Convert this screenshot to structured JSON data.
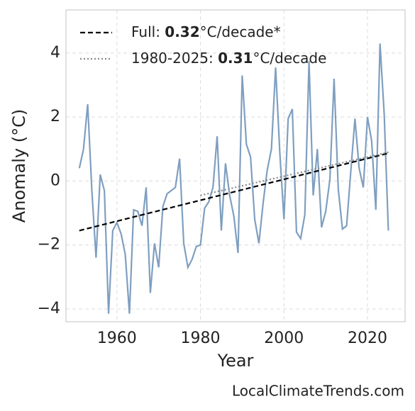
{
  "chart_data": {
    "type": "line",
    "x_label": "Year",
    "y_label": "Anomaly (°C)",
    "x": [
      1951,
      1952,
      1953,
      1954,
      1955,
      1956,
      1957,
      1958,
      1959,
      1960,
      1961,
      1962,
      1963,
      1964,
      1965,
      1966,
      1967,
      1968,
      1969,
      1970,
      1971,
      1972,
      1973,
      1974,
      1975,
      1976,
      1977,
      1978,
      1979,
      1980,
      1981,
      1982,
      1983,
      1984,
      1985,
      1986,
      1987,
      1988,
      1989,
      1990,
      1991,
      1992,
      1993,
      1994,
      1995,
      1996,
      1997,
      1998,
      1999,
      2000,
      2001,
      2002,
      2003,
      2004,
      2005,
      2006,
      2007,
      2008,
      2009,
      2010,
      2011,
      2012,
      2013,
      2014,
      2015,
      2016,
      2017,
      2018,
      2019,
      2020,
      2021,
      2022,
      2023,
      2024,
      2025
    ],
    "series": [
      {
        "color": "#7f9fc0",
        "values": [
          0.4,
          1.0,
          2.4,
          -0.3,
          -2.4,
          0.2,
          -0.3,
          -4.15,
          -1.55,
          -1.3,
          -1.65,
          -2.3,
          -4.15,
          -0.9,
          -0.95,
          -1.4,
          -0.2,
          -3.5,
          -1.95,
          -2.7,
          -0.8,
          -0.4,
          -0.3,
          -0.2,
          0.7,
          -1.95,
          -2.7,
          -2.45,
          -2.05,
          -2.0,
          -0.85,
          -0.65,
          -0.2,
          1.4,
          -1.55,
          0.55,
          -0.45,
          -1.1,
          -2.25,
          3.3,
          1.15,
          0.75,
          -1.2,
          -1.95,
          -0.7,
          0.35,
          1.0,
          3.55,
          0.9,
          -1.2,
          1.95,
          2.25,
          -1.6,
          -1.8,
          -1.05,
          3.75,
          -0.45,
          1.0,
          -1.45,
          -0.95,
          0.05,
          3.2,
          -0.25,
          -1.5,
          -1.4,
          0.3,
          1.95,
          0.4,
          -0.2,
          2.0,
          1.25,
          -0.9,
          4.3,
          2.1,
          -1.55
        ]
      }
    ],
    "trends": [
      {
        "label_parts": [
          "Full: ",
          "0.32",
          "°C/decade*"
        ],
        "color": "#000000",
        "style": "dashed",
        "x": [
          1951,
          2025
        ],
        "values": [
          -1.55,
          0.87
        ]
      },
      {
        "label_parts": [
          "1980-2025: ",
          "0.31",
          "°C/decade"
        ],
        "color": "#888888",
        "style": "dotted",
        "x": [
          1980,
          2025
        ],
        "values": [
          -0.45,
          0.9
        ]
      }
    ],
    "xlim": [
      1947.8,
      2029
    ],
    "ylim": [
      -4.4,
      5.35
    ],
    "xticks": [
      1960,
      1980,
      2000,
      2020
    ],
    "yticks": [
      {
        "value": -4,
        "label": "−4"
      },
      {
        "value": -2,
        "label": "−2"
      },
      0,
      2,
      4
    ],
    "grid": true,
    "watermark": "LocalClimateTrends.com"
  }
}
